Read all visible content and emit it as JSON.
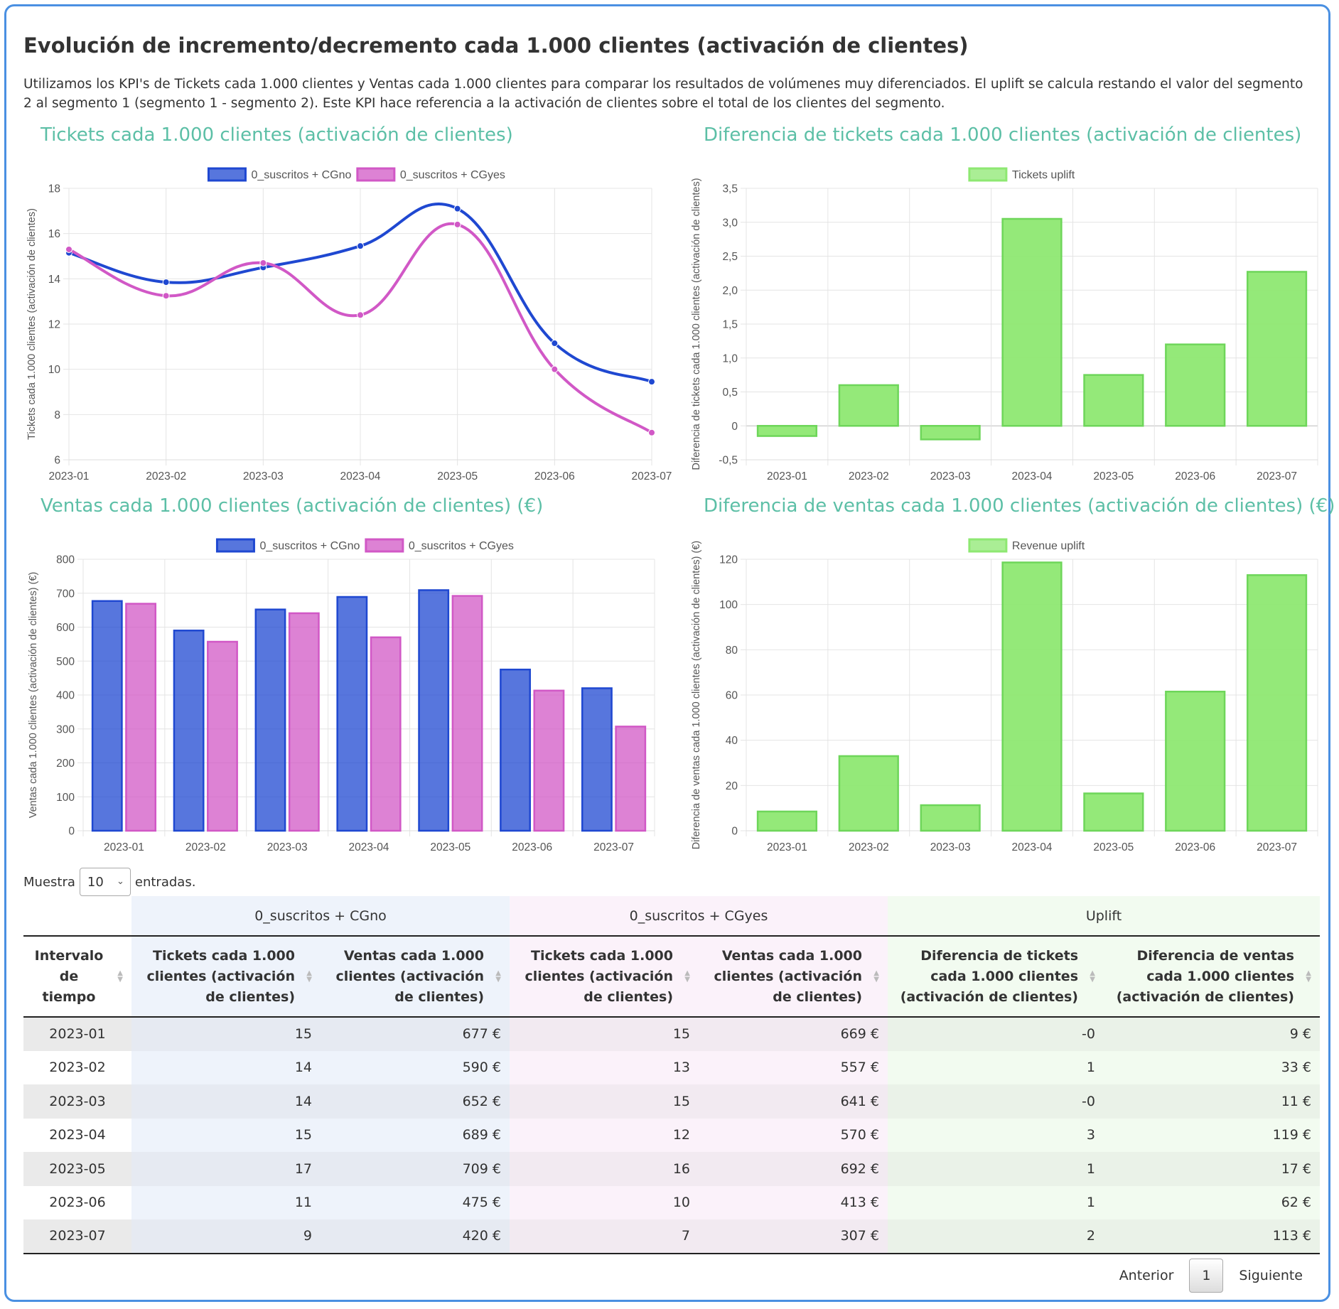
{
  "title": "Evolución de incremento/decremento cada 1.000 clientes (activación de clientes)",
  "description": "Utilizamos los KPI's de Tickets cada 1.000 clientes y Ventas cada 1.000 clientes para comparar los resultados de volúmenes muy diferenciados. El uplift se calcula restando el valor del segmento 2 al segmento 1 (segmento 1 - segmento 2). Este KPI hace referencia a la activación de clientes sobre el total de los clientes del segmento.",
  "colors": {
    "series1": "#1f48d1",
    "series2": "#d158c6",
    "uplift": "#8ee872",
    "title_teal": "#5cbfa6"
  },
  "chart_titles": {
    "tickets": "Tickets cada 1.000 clientes (activación de clientes)",
    "tickets_diff": "Diferencia de tickets cada 1.000 clientes (activación de clientes)",
    "sales": "Ventas cada 1.000 clientes (activación de clientes) (€)",
    "sales_diff": "Diferencia de ventas cada 1.000 clientes (activación de clientes) (€)"
  },
  "chart_data": [
    {
      "id": "tickets",
      "type": "line",
      "categories": [
        "2023-01",
        "2023-02",
        "2023-03",
        "2023-04",
        "2023-05",
        "2023-06",
        "2023-07"
      ],
      "series": [
        {
          "name": "0_suscritos + CGno",
          "values": [
            15.15,
            13.85,
            14.5,
            15.45,
            17.1,
            11.15,
            9.45
          ]
        },
        {
          "name": "0_suscritos + CGyes",
          "values": [
            15.3,
            13.25,
            14.7,
            12.4,
            16.4,
            10.0,
            7.2
          ]
        }
      ],
      "ylabel": "Tickets cada 1.000 clientes (activación de clientes)",
      "ylim": [
        6,
        18
      ],
      "yticks": [
        "6",
        "8",
        "10",
        "12",
        "14",
        "16",
        "18"
      ],
      "legend": "top"
    },
    {
      "id": "tickets_diff",
      "type": "bar",
      "categories": [
        "2023-01",
        "2023-02",
        "2023-03",
        "2023-04",
        "2023-05",
        "2023-06",
        "2023-07"
      ],
      "series": [
        {
          "name": "Tickets uplift",
          "values": [
            -0.15,
            0.6,
            -0.2,
            3.05,
            0.75,
            1.2,
            2.27
          ]
        }
      ],
      "ylabel": "Diferencia de tickets cada 1.000 clientes (activación de clientes)",
      "ylim": [
        -0.5,
        3.5
      ],
      "yticks": [
        "-0,5",
        "0",
        "0,5",
        "1,0",
        "1,5",
        "2,0",
        "2,5",
        "3,0",
        "3,5"
      ],
      "legend": "top"
    },
    {
      "id": "sales",
      "type": "bar",
      "categories": [
        "2023-01",
        "2023-02",
        "2023-03",
        "2023-04",
        "2023-05",
        "2023-06",
        "2023-07"
      ],
      "series": [
        {
          "name": "0_suscritos + CGno",
          "values": [
            677,
            590,
            652,
            689,
            709,
            475,
            420
          ]
        },
        {
          "name": "0_suscritos + CGyes",
          "values": [
            669,
            557,
            641,
            570,
            692,
            413,
            307
          ]
        }
      ],
      "ylabel": "Ventas cada 1.000 clientes (activación de clientes) (€)",
      "ylim": [
        0,
        800
      ],
      "yticks": [
        "0",
        "100",
        "200",
        "300",
        "400",
        "500",
        "600",
        "700",
        "800"
      ],
      "legend": "top"
    },
    {
      "id": "sales_diff",
      "type": "bar",
      "categories": [
        "2023-01",
        "2023-02",
        "2023-03",
        "2023-04",
        "2023-05",
        "2023-06",
        "2023-07"
      ],
      "series": [
        {
          "name": "Revenue uplift",
          "values": [
            8.5,
            33,
            11.3,
            118.6,
            16.5,
            61.5,
            113
          ]
        }
      ],
      "ylabel": "Diferencia de ventas cada 1.000 clientes (activación de clientes) (€)",
      "ylim": [
        0,
        120
      ],
      "yticks": [
        "0",
        "20",
        "40",
        "60",
        "80",
        "100",
        "120"
      ],
      "legend": "top"
    }
  ],
  "table_controls": {
    "show_prefix": "Muestra",
    "show_value": "10",
    "show_suffix": "entradas."
  },
  "table": {
    "groups": [
      "0_suscritos + CGno",
      "0_suscritos + CGyes",
      "Uplift"
    ],
    "headers": [
      "Intervalo de tiempo",
      "Tickets cada 1.000 clientes (activación de clientes)",
      "Ventas cada 1.000 clientes (activación de clientes)",
      "Tickets cada 1.000 clientes (activación de clientes)",
      "Ventas cada 1.000 clientes (activación de clientes)",
      "Diferencia de tickets cada 1.000 clientes (activación de clientes)",
      "Diferencia de ventas cada 1.000 clientes (activación de clientes)"
    ],
    "rows": [
      [
        "2023-01",
        "15",
        "677 €",
        "15",
        "669 €",
        "-0",
        "9 €"
      ],
      [
        "2023-02",
        "14",
        "590 €",
        "13",
        "557 €",
        "1",
        "33 €"
      ],
      [
        "2023-03",
        "14",
        "652 €",
        "15",
        "641 €",
        "-0",
        "11 €"
      ],
      [
        "2023-04",
        "15",
        "689 €",
        "12",
        "570 €",
        "3",
        "119 €"
      ],
      [
        "2023-05",
        "17",
        "709 €",
        "16",
        "692 €",
        "1",
        "17 €"
      ],
      [
        "2023-06",
        "11",
        "475 €",
        "10",
        "413 €",
        "1",
        "62 €"
      ],
      [
        "2023-07",
        "9",
        "420 €",
        "7",
        "307 €",
        "2",
        "113 €"
      ]
    ]
  },
  "pager": {
    "prev": "Anterior",
    "page": "1",
    "next": "Siguiente"
  }
}
